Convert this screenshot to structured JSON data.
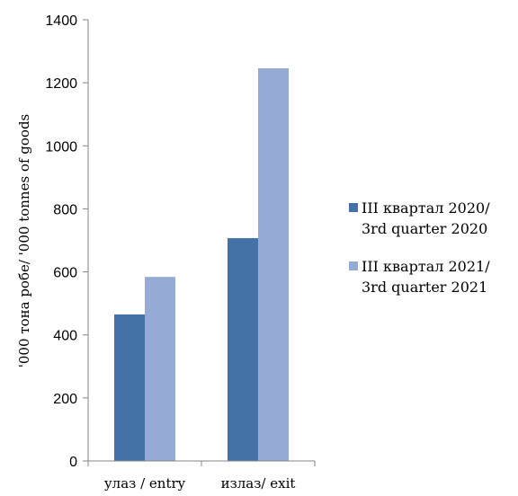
{
  "chart_data": {
    "type": "bar",
    "categories": [
      "улаз / entry",
      "излаз/ exit"
    ],
    "series": [
      {
        "name_lines": [
          "III квартал 2020/",
          "3rd quarter 2020"
        ],
        "values": [
          465,
          707
        ],
        "color": "#4472A8"
      },
      {
        "name_lines": [
          "III квартал 2021/",
          "3rd quarter 2021"
        ],
        "values": [
          584,
          1246
        ],
        "color": "#95AAD4"
      }
    ],
    "title": "",
    "xlabel": "",
    "ylabel": "'000 тона робе/ '000 tonnes of goods",
    "ylim": [
      0,
      1400
    ],
    "yticks": [
      0,
      200,
      400,
      600,
      800,
      1000,
      1200,
      1400
    ],
    "grid": false,
    "legend_position": "right"
  }
}
